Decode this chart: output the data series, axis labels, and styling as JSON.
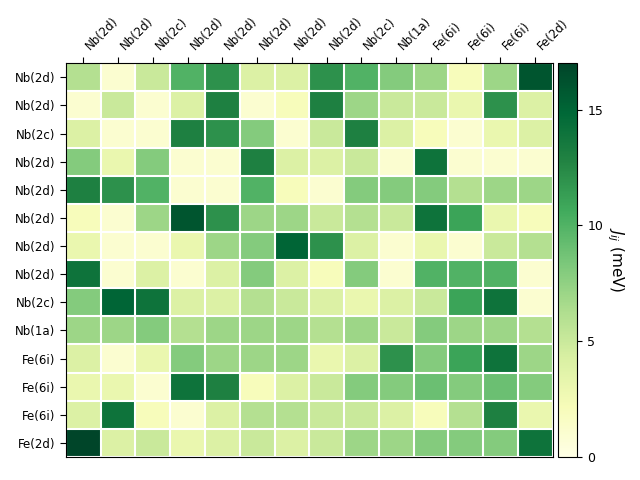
{
  "labels": [
    "Nb(2d)",
    "Nb(2d)",
    "Nb(2c)",
    "Nb(2d)",
    "Nb(2d)",
    "Nb(2d)",
    "Nb(2d)",
    "Nb(2d)",
    "Nb(2c)",
    "Nb(1a)",
    "Fe(6i)",
    "Fe(6i)",
    "Fe(6i)",
    "Fe(2d)"
  ],
  "matrix": [
    [
      6,
      1,
      5,
      10,
      12,
      4,
      4,
      12,
      10,
      8,
      7,
      2,
      7,
      16
    ],
    [
      1,
      5,
      1,
      4,
      13,
      1,
      2,
      13,
      7,
      5,
      5,
      3,
      12,
      4
    ],
    [
      4,
      1,
      1,
      13,
      12,
      8,
      1,
      5,
      13,
      4,
      2,
      1,
      3,
      4
    ],
    [
      8,
      3,
      8,
      1,
      1,
      13,
      4,
      4,
      5,
      1,
      14,
      1,
      1,
      1
    ],
    [
      13,
      12,
      10,
      1,
      1,
      10,
      2,
      1,
      8,
      8,
      8,
      6,
      7,
      7
    ],
    [
      2,
      1,
      7,
      16,
      12,
      7,
      7,
      5,
      6,
      5,
      14,
      11,
      3,
      2
    ],
    [
      3,
      1,
      1,
      3,
      7,
      8,
      15,
      12,
      4,
      1,
      3,
      1,
      5,
      6
    ],
    [
      14,
      1,
      4,
      1,
      4,
      8,
      4,
      2,
      8,
      1,
      10,
      10,
      10,
      1
    ],
    [
      8,
      15,
      14,
      4,
      4,
      6,
      5,
      4,
      3,
      4,
      5,
      11,
      14,
      1
    ],
    [
      7,
      7,
      8,
      6,
      7,
      7,
      7,
      6,
      7,
      5,
      8,
      7,
      7,
      6
    ],
    [
      4,
      1,
      3,
      8,
      7,
      7,
      7,
      3,
      4,
      12,
      8,
      11,
      14,
      7
    ],
    [
      3,
      3,
      1,
      14,
      13,
      2,
      4,
      5,
      8,
      8,
      9,
      8,
      9,
      8
    ],
    [
      4,
      14,
      2,
      1,
      4,
      6,
      6,
      5,
      5,
      4,
      2,
      6,
      13,
      3
    ],
    [
      17,
      4,
      5,
      3,
      4,
      5,
      4,
      5,
      7,
      7,
      8,
      8,
      8,
      14
    ]
  ],
  "vmin": 0,
  "vmax": 17,
  "cmap": "YlGn",
  "colorbar_label": "$J_{ij}$ (meV)",
  "colorbar_ticks": [
    0,
    5,
    10,
    15
  ],
  "figsize": [
    6.4,
    4.8
  ],
  "dpi": 100
}
